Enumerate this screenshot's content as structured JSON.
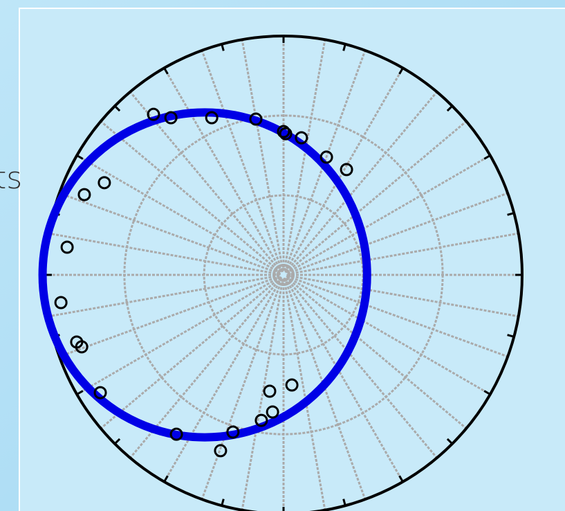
{
  "slide_text": "ts",
  "chart_data": {
    "type": "polar-scatter",
    "rlim": [
      0,
      1
    ],
    "rticks": [
      0.333,
      0.667
    ],
    "grid": true,
    "x": [
      -0.545,
      -0.472,
      -0.301,
      -0.116,
      0,
      0.009,
      0.075,
      0.18,
      0.264,
      -0.751,
      -0.835,
      -0.907,
      -0.933,
      -0.867,
      -0.846,
      -0.768,
      -0.449,
      -0.264,
      -0.212,
      -0.093,
      -0.046,
      -0.058,
      0.035
    ],
    "y": [
      0.672,
      0.658,
      0.658,
      0.652,
      0.6,
      0.591,
      0.574,
      0.493,
      0.441,
      0.386,
      0.336,
      0.116,
      -0.116,
      -0.281,
      -0.301,
      -0.493,
      -0.667,
      -0.736,
      -0.658,
      -0.609,
      -0.574,
      -0.487,
      -0.461
    ],
    "point_color": "#000000",
    "fit_circle": {
      "cx": -0.33,
      "cy": 0,
      "r": 0.68,
      "color": "#0000e6"
    }
  }
}
